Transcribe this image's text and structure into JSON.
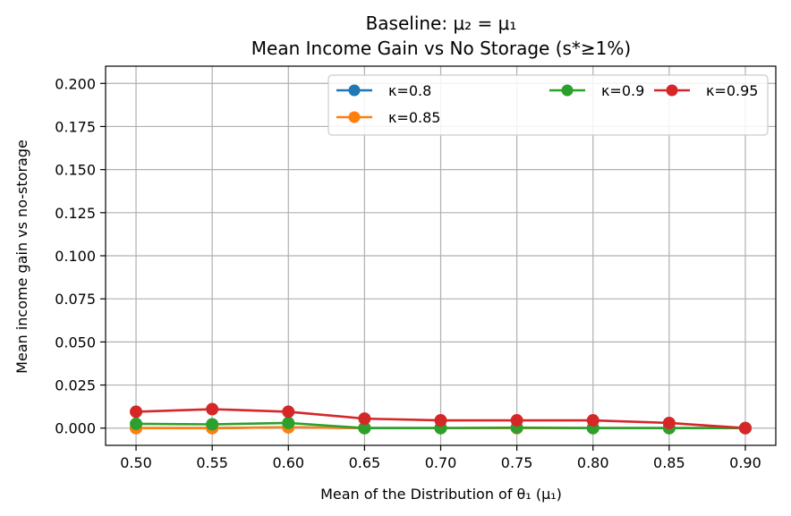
{
  "chart_data": {
    "type": "line",
    "title": "Baseline: μ₂ = μ₁",
    "subtitle": "Mean Income Gain vs No Storage (s*≥1%)",
    "xlabel": "Mean of the Distribution of θ₁ (μ₁)",
    "ylabel": "Mean income gain vs no-storage",
    "x": [
      0.5,
      0.55,
      0.6,
      0.65,
      0.7,
      0.75,
      0.8,
      0.85,
      0.9
    ],
    "x_tick_labels": [
      "0.50",
      "0.55",
      "0.60",
      "0.65",
      "0.70",
      "0.75",
      "0.80",
      "0.85",
      "0.90"
    ],
    "xlim": [
      0.48,
      0.92
    ],
    "ylim": [
      -0.01,
      0.21
    ],
    "y_ticks": [
      0.0,
      0.025,
      0.05,
      0.075,
      0.1,
      0.125,
      0.15,
      0.175,
      0.2
    ],
    "y_tick_labels": [
      "0.000",
      "0.025",
      "0.050",
      "0.075",
      "0.100",
      "0.125",
      "0.150",
      "0.175",
      "0.200"
    ],
    "grid": true,
    "legend_position": "top-right",
    "series": [
      {
        "name": "κ=0.8",
        "color": "#1f77b4",
        "values": [
          0.0,
          0.0,
          0.0005,
          0.0,
          0.0,
          0.0,
          0.0,
          0.0,
          0.0
        ]
      },
      {
        "name": "κ=0.85",
        "color": "#ff7f0e",
        "values": [
          0.0,
          0.0,
          0.0005,
          0.0,
          0.0,
          0.0,
          0.0,
          0.0,
          0.0
        ]
      },
      {
        "name": "κ=0.9",
        "color": "#2ca02c",
        "values": [
          0.0025,
          0.0022,
          0.003,
          0.0,
          0.0,
          0.0003,
          0.0,
          0.0,
          0.0
        ]
      },
      {
        "name": "κ=0.95",
        "color": "#d62728",
        "values": [
          0.0095,
          0.011,
          0.0095,
          0.0055,
          0.0045,
          0.0045,
          0.0045,
          0.003,
          0.0
        ]
      }
    ]
  }
}
